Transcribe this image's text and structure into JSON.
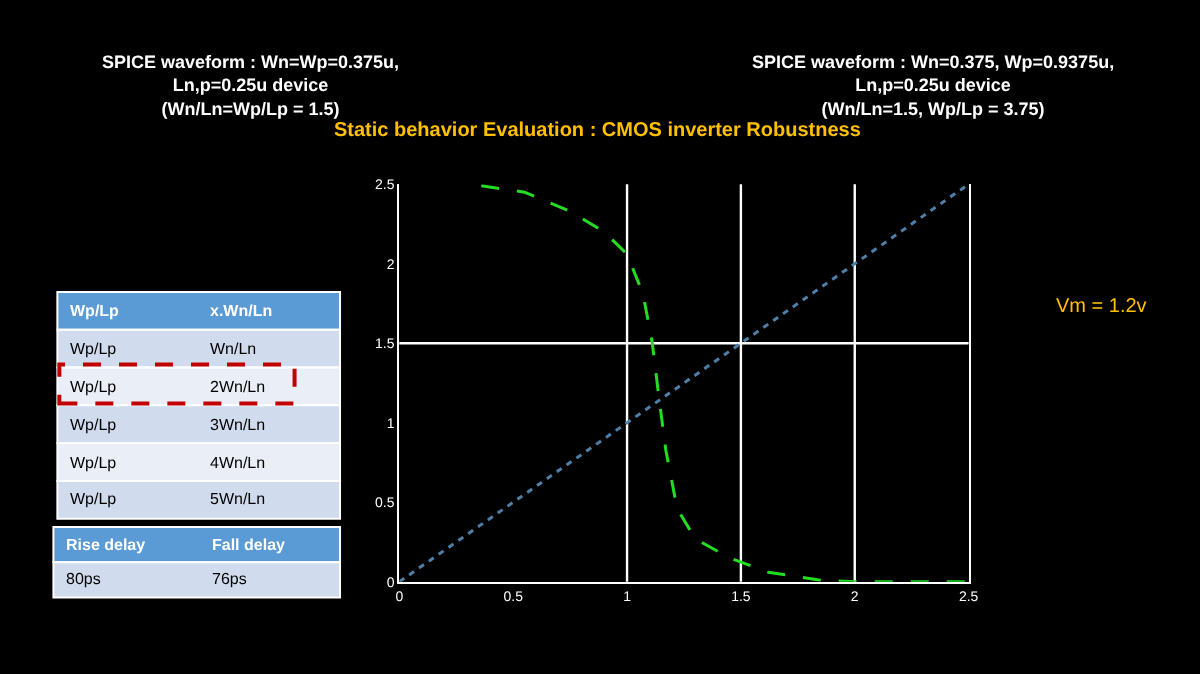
{
  "chart_data": {
    "type": "line",
    "title": "Static behavior Evaluation : CMOS inverter Robustness",
    "x": [
      0.36,
      0.55,
      0.75,
      0.9,
      1.0,
      1.07,
      1.11,
      1.14,
      1.17,
      1.22,
      1.3,
      1.45,
      1.62,
      1.85,
      2.0,
      2.5
    ],
    "series": [
      {
        "color": "#22dd22",
        "line_style": "dashed",
        "values": [
          2.49,
          2.45,
          2.33,
          2.2,
          2.06,
          1.81,
          1.51,
          1.16,
          0.83,
          0.46,
          0.27,
          0.15,
          0.06,
          0.01,
          0,
          0
        ]
      },
      {
        "color": "#4f7fa8",
        "line_style": "dotted",
        "x": [
          0,
          2.5
        ],
        "values": [
          0,
          2.5
        ]
      }
    ],
    "xlim": [
      0,
      2.5
    ],
    "ylim": [
      0,
      2.5
    ],
    "xticks": [
      0,
      0.5,
      1,
      1.5,
      2,
      2.5
    ],
    "yticks": [
      0,
      0.5,
      1,
      1.5,
      2,
      2.5
    ],
    "grid": false,
    "marker": "none",
    "ref_lines": [
      {
        "axis": "x",
        "value": 1,
        "color": "#ffffff"
      },
      {
        "axis": "x",
        "value": 1.5,
        "color": "#ffffff"
      },
      {
        "axis": "x",
        "value": 2,
        "color": "#ffffff"
      },
      {
        "axis": "y",
        "value": 1.5,
        "color": "#ffffff"
      }
    ],
    "annotations": [
      "SPICE waveform : Wn=Wp=0.375u,\nLn,p=0.25u device\n(Wn/Ln=Wp/Lp = 1.5)",
      "SPICE waveform : Wn=0.375, Wp=0.9375u,\nLn,p=0.25u device\n(Wn/Ln=1.5, Wp/Lp = 3.75)",
      "Vm = 1.2v",
      "Wp/Lp",
      "x.Wn/Ln",
      "Wp/Lp",
      "Wn/Ln",
      "Wp/Lp",
      "2Wn/Ln",
      "Wp/Lp",
      "3Wn/Ln",
      "Wp/Lp",
      "4Wn/Ln",
      "Wp/Lp",
      "5Wn/Ln",
      "Rise delay",
      "Fall delay",
      "80ps",
      "76ps"
    ]
  }
}
